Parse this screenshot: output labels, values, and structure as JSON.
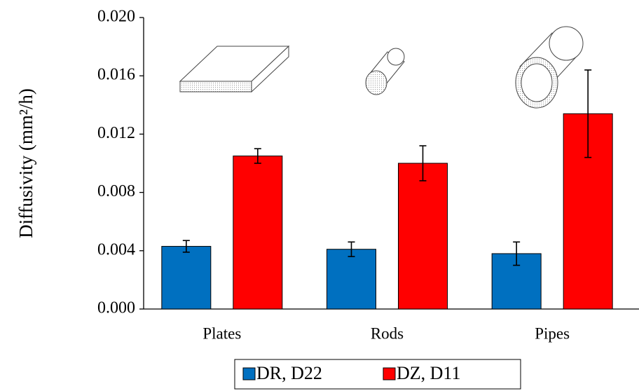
{
  "chart_data": {
    "type": "bar",
    "y_label": "Diffusivity (mm²/h)",
    "categories": [
      "Plates",
      "Rods",
      "Pipes"
    ],
    "series": [
      {
        "name": "DR, D22",
        "color": "#0070c0",
        "values": [
          0.0043,
          0.0041,
          0.0038
        ],
        "errors": [
          0.0004,
          0.0005,
          0.0008
        ]
      },
      {
        "name": "DZ, D11",
        "color": "#ff0000",
        "values": [
          0.0105,
          0.01,
          0.0134
        ],
        "errors": [
          0.0005,
          0.0012,
          0.003
        ]
      }
    ],
    "ylim": [
      0,
      0.02
    ],
    "yticks": [
      {
        "value": 0,
        "label": "0.000"
      },
      {
        "value": 0.004,
        "label": "0.004"
      },
      {
        "value": 0.008,
        "label": "0.008"
      },
      {
        "value": 0.012,
        "label": "0.012"
      },
      {
        "value": 0.016,
        "label": "0.016"
      },
      {
        "value": 0.02,
        "label": "0.020"
      }
    ],
    "grid": false,
    "legend": "bottom"
  }
}
